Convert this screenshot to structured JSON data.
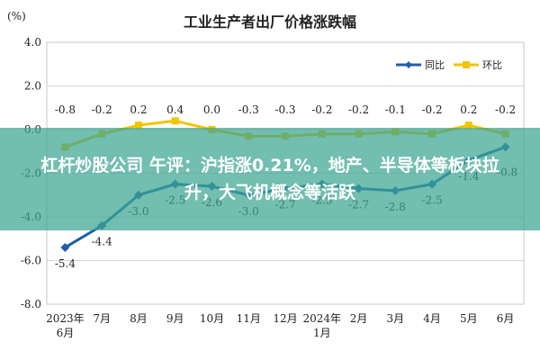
{
  "banner": {
    "headline": "杠杆炒股公司 午评：沪指涨0.21%，地产、半导体等板块拉升，大飞机概念等活跃"
  },
  "chart_data": {
    "type": "line",
    "title": "工业生产者出厂价格涨跌幅",
    "ylabel": "(%)",
    "ylim": [
      -8.0,
      4.0
    ],
    "yticks": [
      "4.0",
      "2.0",
      "0.0",
      "-2.0",
      "-4.0",
      "-6.0",
      "-8.0"
    ],
    "categories": [
      "2023年\n6月",
      "7月",
      "8月",
      "9月",
      "10月",
      "11月",
      "12月",
      "2024年\n1月",
      "2月",
      "3月",
      "4月",
      "5月",
      "6月"
    ],
    "series": [
      {
        "name": "同比",
        "color": "#1f5ea8",
        "values": [
          -5.4,
          -4.4,
          -3.0,
          -2.5,
          -2.6,
          -3.0,
          -2.7,
          -2.5,
          -2.7,
          -2.8,
          -2.5,
          -1.4,
          -0.8
        ],
        "labels": [
          "-5.4",
          "-4.4",
          "-3.0",
          "-2.5",
          "-2.6",
          "-3.0",
          "-2.7",
          "-2.5",
          "-2.7",
          "-2.8",
          "-2.5",
          "-1.4",
          "-0.8"
        ]
      },
      {
        "name": "环比",
        "color": "#f2c500",
        "values": [
          -0.8,
          -0.2,
          0.2,
          0.4,
          0.0,
          -0.3,
          -0.3,
          -0.2,
          -0.2,
          -0.1,
          -0.2,
          0.2,
          -0.2
        ],
        "labels": [
          "-0.8",
          "-0.2",
          "0.2",
          "0.4",
          "0.0",
          "-0.3",
          "-0.3",
          "-0.2",
          "-0.2",
          "-0.1",
          "-0.2",
          "0.2",
          "-0.2"
        ]
      }
    ],
    "grid": true,
    "legend": "top-right"
  }
}
